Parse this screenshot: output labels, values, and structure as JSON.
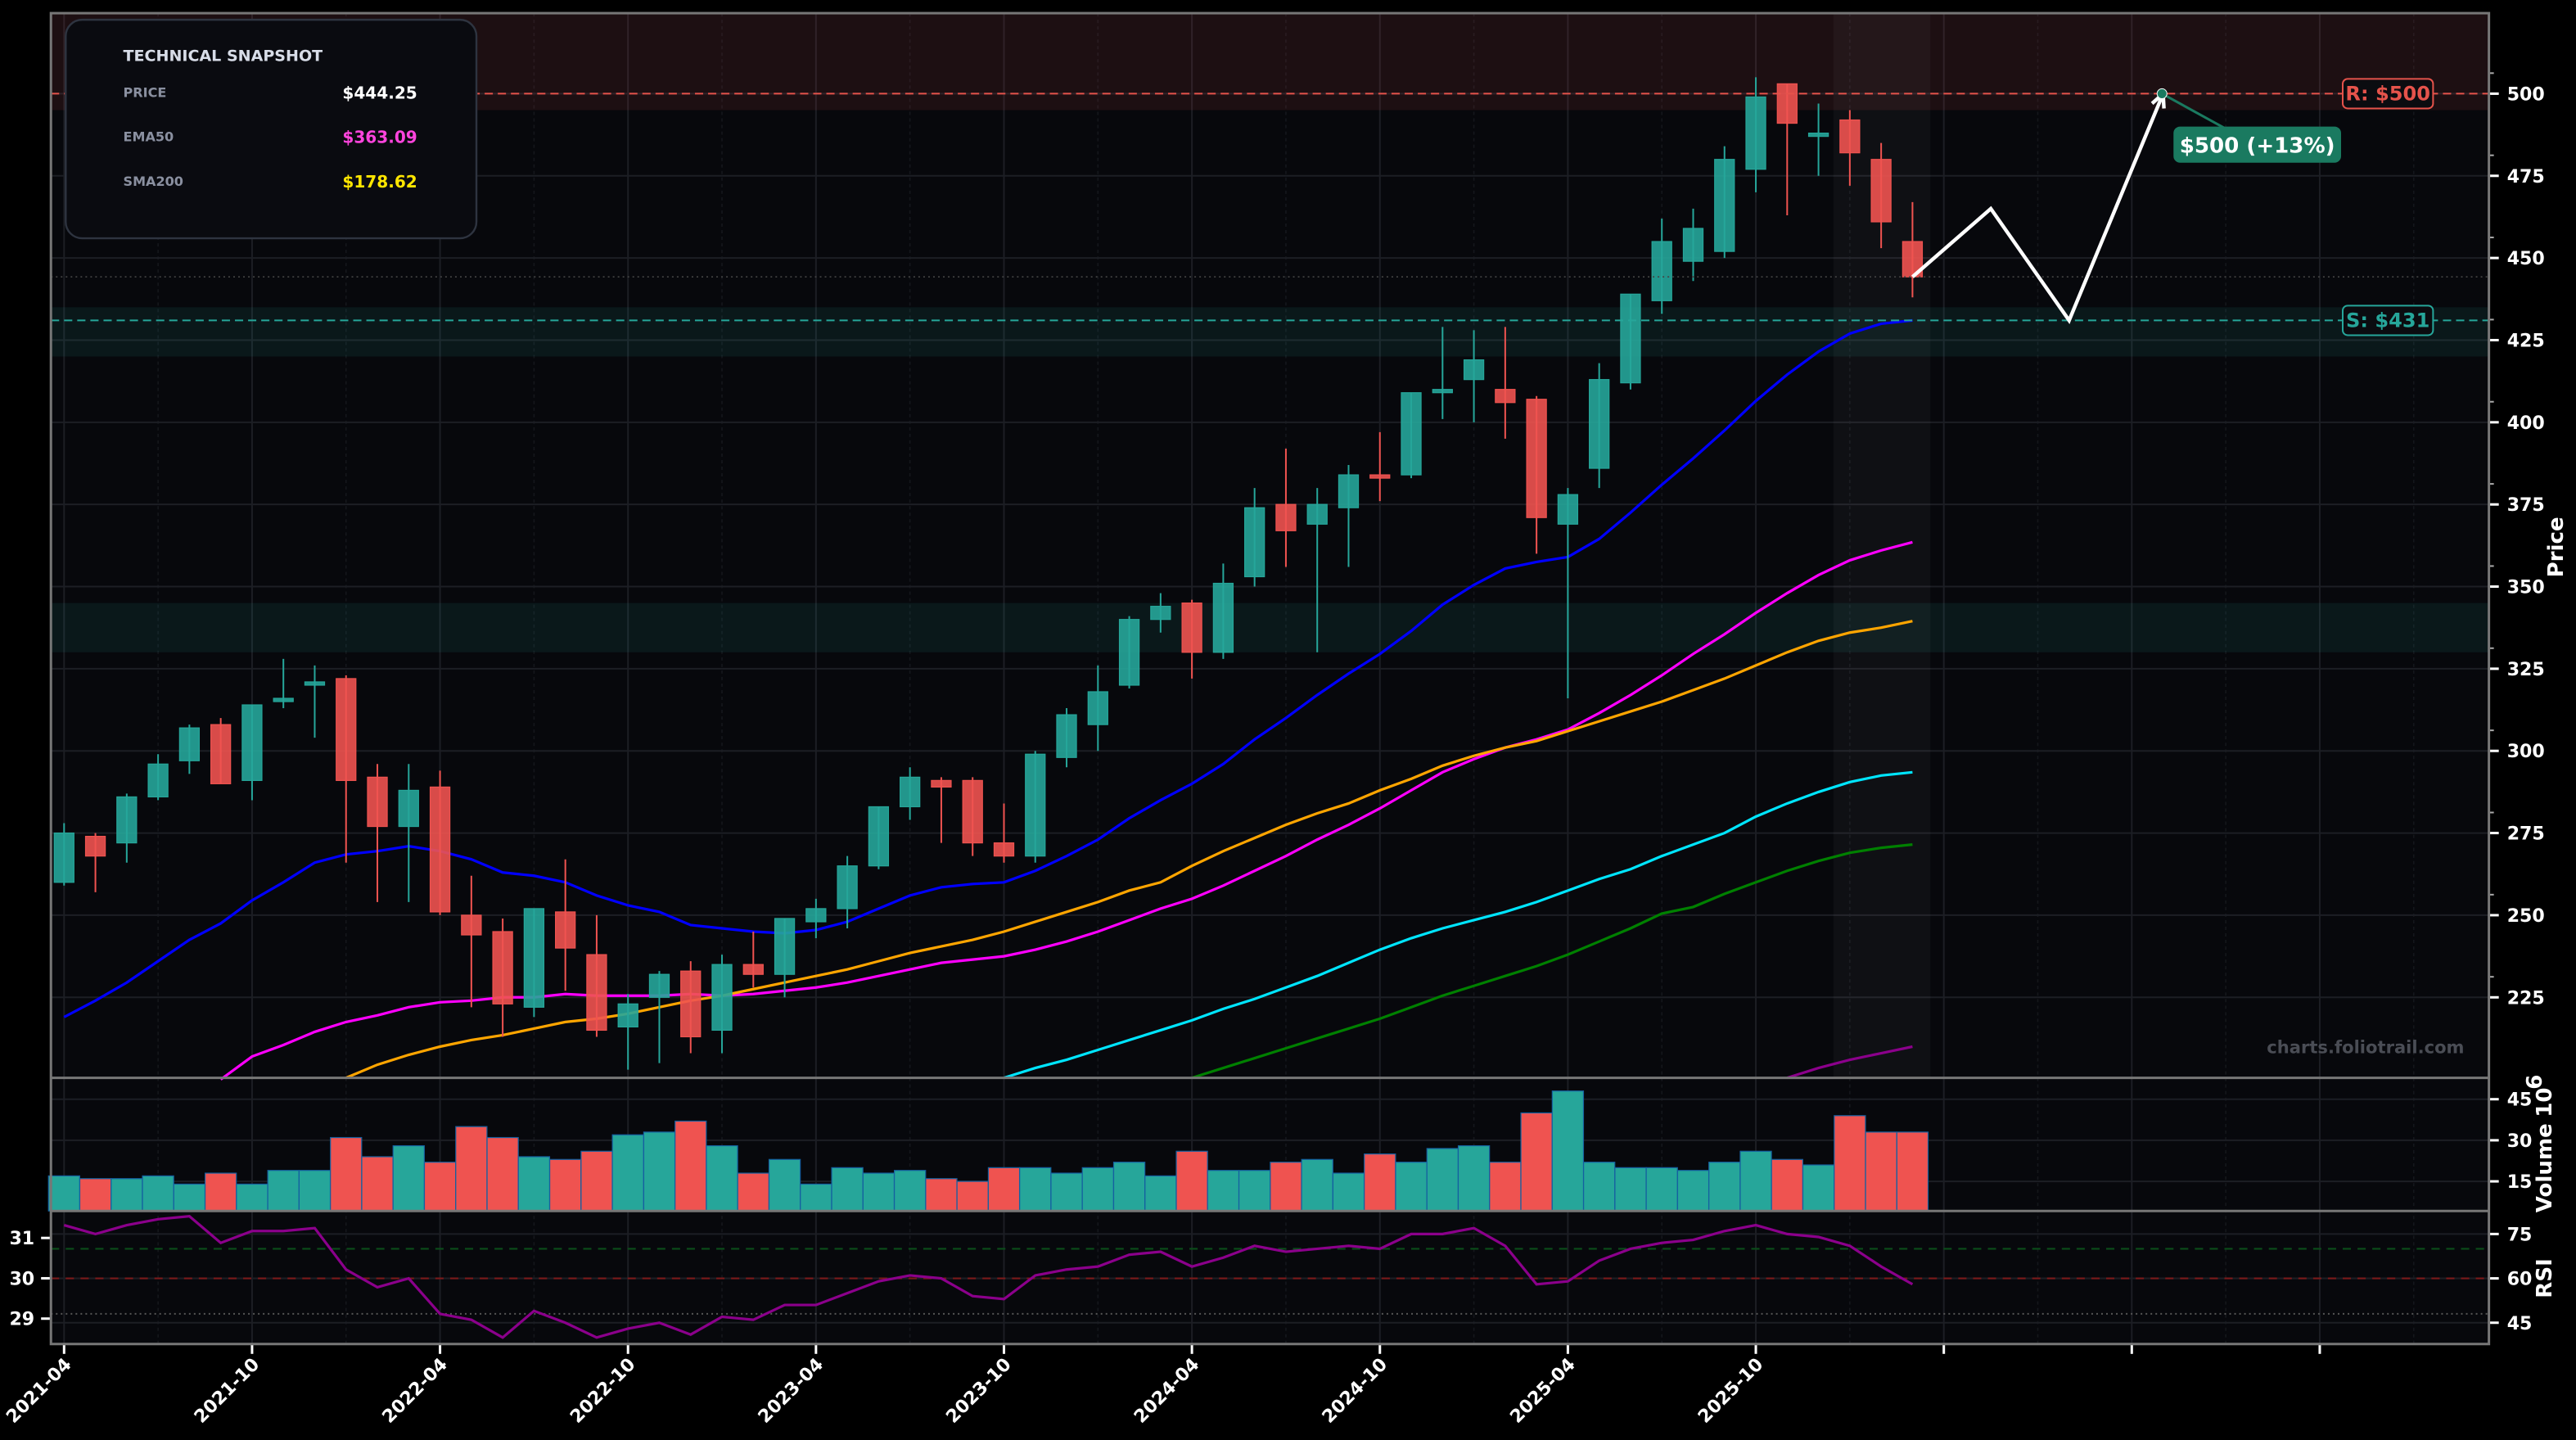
{
  "snapshot": {
    "title": "TECHNICAL SNAPSHOT",
    "rows": [
      {
        "label": "PRICE",
        "value": "$444.25",
        "color": "#ffffff"
      },
      {
        "label": "EMA50",
        "value": "$363.09",
        "color": "#ff44dd"
      },
      {
        "label": "SMA200",
        "value": "$178.62",
        "color": "#ffe600"
      }
    ]
  },
  "levels": {
    "resistance": {
      "label": "R: $500",
      "value": 500,
      "color": "#e5534b"
    },
    "support": {
      "label": "S: $431",
      "value": 431,
      "color": "#26a69a"
    }
  },
  "target_label": "$500 (+13%)",
  "watermark": "charts.foliotrail.com",
  "colors": {
    "up": "#26a69a",
    "down": "#ef5350",
    "rsi": "#8b008b",
    "target": "#1a7a60"
  },
  "chart_data": {
    "type": "candlestick",
    "title": "",
    "ylabel": "Price",
    "volume_label": "Volume",
    "volume_exponent": "10",
    "volume_exponent_power": "6",
    "rsi_label": "RSI",
    "ylim": [
      200.5,
      524.5
    ],
    "xlim": [
      -0.42,
      77.4
    ],
    "volume_ylim": [
      4.2,
      52.8
    ],
    "rsi_ylim": [
      37.8,
      82.8
    ],
    "rsi_left_ylim": [
      28.37,
      31.67
    ],
    "price_ticks": [
      "225",
      "250",
      "275",
      "300",
      "325",
      "350",
      "375",
      "400",
      "425",
      "450",
      "475",
      "500"
    ],
    "volume_ticks": [
      "15",
      "30",
      "45"
    ],
    "rsi_ticks": [
      "45",
      "60",
      "75"
    ],
    "rsi_left_ticks": [
      "29",
      "30",
      "31"
    ],
    "rsi_levels": [
      70,
      60,
      48
    ],
    "x_tick_labels": [
      "2021-04",
      "2021-10",
      "2022-04",
      "2022-10",
      "2023-04",
      "2023-10",
      "2024-04",
      "2024-10",
      "2025-04",
      "2025-10",
      "",
      "",
      ""
    ],
    "dates": [
      "2021-04",
      "2021-05",
      "2021-06",
      "2021-07",
      "2021-08",
      "2021-09",
      "2021-10",
      "2021-11",
      "2021-12",
      "2022-01",
      "2022-02",
      "2022-03",
      "2022-04",
      "2022-05",
      "2022-06",
      "2022-07",
      "2022-08",
      "2022-09",
      "2022-10",
      "2022-11",
      "2022-12",
      "2023-01",
      "2023-02",
      "2023-03",
      "2023-04",
      "2023-05",
      "2023-06",
      "2023-07",
      "2023-08",
      "2023-09",
      "2023-10",
      "2023-11",
      "2023-12",
      "2024-01",
      "2024-02",
      "2024-03",
      "2024-04",
      "2024-05",
      "2024-06",
      "2024-07",
      "2024-08",
      "2024-09",
      "2024-10",
      "2024-11",
      "2024-12",
      "2025-01",
      "2025-02",
      "2025-03",
      "2025-04",
      "2025-05",
      "2025-06",
      "2025-07",
      "2025-08",
      "2025-09",
      "2025-10",
      "2025-11",
      "2025-12",
      "2026-01",
      "2026-02",
      "2026-03"
    ],
    "open": [
      260,
      274,
      272,
      286,
      297,
      308,
      291,
      315,
      320,
      322,
      292,
      277,
      289,
      250,
      245,
      222,
      251,
      238,
      216,
      225,
      233,
      215,
      235,
      232,
      248,
      252,
      265,
      283,
      291,
      291,
      272,
      268,
      298,
      308,
      320,
      340,
      345,
      330,
      353,
      375,
      369,
      374,
      384,
      384,
      409,
      413,
      410,
      407,
      369,
      386,
      412,
      437,
      449,
      452,
      477,
      503,
      487,
      492,
      480,
      455
    ],
    "high": [
      278,
      275,
      287,
      299,
      308,
      310,
      314,
      328,
      326,
      323,
      296,
      296,
      294,
      262,
      249,
      252,
      267,
      250,
      226,
      233,
      236,
      238,
      245,
      249,
      255,
      268,
      283,
      295,
      292,
      292,
      284,
      300,
      313,
      326,
      341,
      348,
      346,
      357,
      380,
      392,
      380,
      387,
      397,
      409,
      429,
      428,
      429,
      408,
      380,
      418,
      439,
      462,
      465,
      484,
      505,
      503,
      497,
      495,
      485,
      467
    ],
    "low": [
      259,
      257,
      266,
      285,
      293,
      290,
      285,
      313,
      304,
      266,
      254,
      254,
      250,
      222,
      213,
      219,
      227,
      213,
      203,
      205,
      208,
      208,
      228,
      225,
      243,
      246,
      264,
      279,
      272,
      268,
      266,
      266,
      295,
      300,
      319,
      336,
      322,
      328,
      350,
      356,
      330,
      356,
      376,
      383,
      401,
      400,
      395,
      360,
      316,
      380,
      410,
      433,
      443,
      450,
      470,
      463,
      475,
      472,
      453,
      438
    ],
    "close": [
      275,
      268,
      286,
      296,
      307,
      290,
      314,
      316,
      321,
      291,
      277,
      288,
      251,
      244,
      223,
      252,
      240,
      215,
      223,
      232,
      213,
      235,
      232,
      249,
      252,
      265,
      283,
      292,
      289,
      272,
      268,
      299,
      311,
      318,
      340,
      344,
      330,
      351,
      374,
      367,
      375,
      384,
      383,
      409,
      410,
      419,
      406,
      371,
      378,
      413,
      439,
      455,
      459,
      480,
      499,
      491,
      488,
      482,
      461,
      444.25
    ],
    "volume": [
      17,
      16,
      16,
      17,
      14,
      18,
      14,
      19,
      19,
      31,
      24,
      28,
      22,
      35,
      31,
      24,
      23,
      26,
      32,
      33,
      37,
      28,
      18,
      23,
      14,
      20,
      18,
      19,
      16,
      15,
      20,
      20,
      18,
      20,
      22,
      17,
      26,
      19,
      19,
      22,
      23,
      18,
      25,
      22,
      27,
      28,
      22,
      40,
      48,
      22,
      20,
      20,
      19,
      22,
      26,
      23,
      21,
      39,
      33,
      33
    ],
    "rsi": [
      78,
      75,
      78,
      80,
      81,
      72,
      76,
      76,
      77,
      63,
      57,
      60,
      48,
      46,
      40,
      49,
      45,
      40,
      43,
      45,
      41,
      47,
      46,
      51,
      51,
      55,
      59,
      61,
      60,
      54,
      53,
      61,
      63,
      64,
      68,
      69,
      64,
      67,
      71,
      69,
      70,
      71,
      70,
      75,
      75,
      77,
      71,
      58,
      59,
      66,
      70,
      72,
      73,
      76,
      78,
      75,
      74,
      71,
      64,
      58
    ],
    "moving_averages": [
      {
        "color": "#0000ff",
        "values": [
          219,
          224,
          229.5,
          236,
          242.5,
          247.5,
          254.5,
          260,
          266,
          268.5,
          269.5,
          271,
          269.5,
          267,
          263,
          262,
          260,
          256,
          253,
          251,
          247,
          246,
          245,
          244.5,
          245.5,
          248,
          252,
          256,
          258.5,
          259.5,
          260,
          263.5,
          268,
          273,
          279.5,
          285,
          290,
          296,
          303.5,
          310,
          317,
          323.5,
          329.5,
          336.5,
          344.5,
          350.5,
          355.5,
          357.5,
          359,
          364.5,
          372.5,
          381,
          389,
          397.5,
          406.5,
          414.5,
          421.5,
          427,
          430,
          431
        ]
      },
      {
        "color": "#ff00ff",
        "values": [
          null,
          null,
          null,
          null,
          null,
          200,
          207,
          210.5,
          214.5,
          217.5,
          219.5,
          222,
          223.5,
          224,
          225,
          225,
          226,
          225.5,
          225.5,
          225.5,
          226,
          225.5,
          226,
          227,
          228,
          229.5,
          231.5,
          233.5,
          235.5,
          236.5,
          237.5,
          239.5,
          242,
          245,
          248.5,
          252,
          255,
          259,
          263.5,
          268,
          273,
          277.5,
          282.5,
          288,
          293.5,
          297.5,
          301,
          303.5,
          306.5,
          311.5,
          317,
          323,
          329.5,
          335.5,
          342,
          348,
          353.5,
          358,
          361,
          363.5
        ]
      },
      {
        "color": "#ffa500",
        "values": [
          null,
          null,
          null,
          null,
          null,
          null,
          null,
          null,
          null,
          200.5,
          204.5,
          207.5,
          210,
          212,
          213.5,
          215.5,
          217.5,
          218.5,
          220,
          222,
          224,
          225.5,
          227.5,
          229.5,
          231.5,
          233.5,
          236,
          238.5,
          240.5,
          242.5,
          245,
          248,
          251,
          254,
          257.5,
          260,
          265,
          269.5,
          273.5,
          277.5,
          281,
          284,
          288,
          291.5,
          295.5,
          298.5,
          301,
          303,
          306,
          309,
          312,
          315,
          318.5,
          322,
          326,
          330,
          333.5,
          336,
          337.5,
          339.5
        ]
      },
      {
        "color": "#00e5ff",
        "values": [
          null,
          null,
          null,
          null,
          null,
          null,
          null,
          null,
          null,
          null,
          null,
          null,
          null,
          null,
          null,
          null,
          null,
          null,
          null,
          null,
          null,
          null,
          null,
          null,
          null,
          null,
          null,
          null,
          null,
          null,
          200.5,
          203.5,
          206,
          209,
          212,
          215,
          218,
          221.5,
          224.5,
          228,
          231.5,
          235.5,
          239.5,
          243,
          246,
          248.5,
          251,
          254,
          257.5,
          261,
          264,
          268,
          271.5,
          275,
          280,
          284,
          287.5,
          290.5,
          292.5,
          293.5
        ]
      },
      {
        "color": "#008000",
        "values": [
          null,
          null,
          null,
          null,
          null,
          null,
          null,
          null,
          null,
          null,
          null,
          null,
          null,
          null,
          null,
          null,
          null,
          null,
          null,
          null,
          null,
          null,
          null,
          null,
          null,
          null,
          null,
          null,
          null,
          null,
          null,
          null,
          null,
          null,
          null,
          null,
          200.5,
          203.5,
          206.5,
          209.5,
          212.5,
          215.5,
          218.5,
          222,
          225.5,
          228.5,
          231.5,
          234.5,
          238,
          242,
          246,
          250.5,
          252.5,
          256.5,
          260,
          263.5,
          266.5,
          269,
          270.5,
          271.5
        ]
      },
      {
        "color": "#8b008b",
        "values": [
          null,
          null,
          null,
          null,
          null,
          null,
          null,
          null,
          null,
          null,
          null,
          null,
          null,
          null,
          null,
          null,
          null,
          null,
          null,
          null,
          null,
          null,
          null,
          null,
          null,
          null,
          null,
          null,
          null,
          null,
          null,
          null,
          null,
          null,
          null,
          null,
          null,
          null,
          null,
          null,
          null,
          null,
          null,
          null,
          null,
          null,
          null,
          null,
          null,
          null,
          null,
          null,
          null,
          null,
          null,
          200.5,
          203.5,
          206,
          208,
          210
        ]
      }
    ],
    "forecast": [
      [
        59,
        444.25
      ],
      [
        61.5,
        465
      ],
      [
        64,
        431
      ],
      [
        67,
        500
      ]
    ],
    "zones": [
      {
        "from": 495,
        "to": 524.5,
        "color": "#e5534b"
      },
      {
        "from": 420,
        "to": 435,
        "color": "#26a69a"
      },
      {
        "from": 330,
        "to": 345,
        "color": "#26a69a"
      }
    ]
  }
}
